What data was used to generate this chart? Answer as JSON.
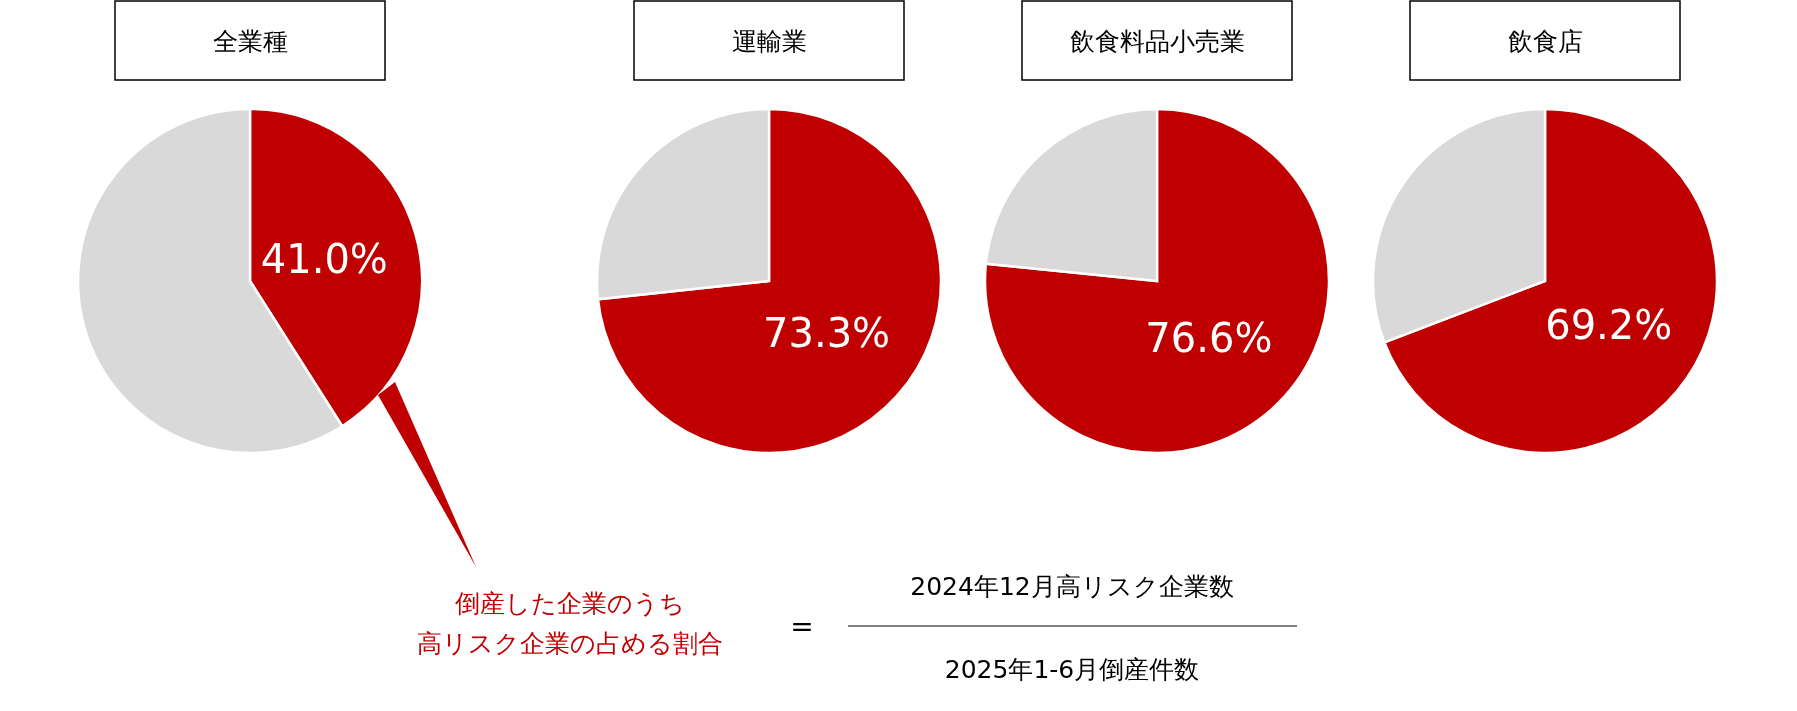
{
  "chart_data": [
    {
      "type": "pie",
      "title": "全業種",
      "categories": [
        null,
        null
      ],
      "values": [
        41.0,
        59.0
      ],
      "colors": [
        "#c00000",
        "#d9d9d9"
      ],
      "value_labels": [
        "41.0%",
        null
      ],
      "annotations": [
        "倒産した企業のうち",
        "高リスク企業の占める割合",
        "=",
        "2024年12月高リスク企業数",
        "2025年1-6月倒産件数"
      ]
    },
    {
      "type": "pie",
      "title": "運輸業",
      "categories": [
        null,
        null
      ],
      "values": [
        73.3,
        26.7
      ],
      "colors": [
        "#c00000",
        "#d9d9d9"
      ],
      "value_labels": [
        "73.3%",
        null
      ]
    },
    {
      "type": "pie",
      "title": "飲食料品小売業",
      "categories": [
        null,
        null
      ],
      "values": [
        76.6,
        23.4
      ],
      "colors": [
        "#c00000",
        "#d9d9d9"
      ],
      "value_labels": [
        "76.6%",
        null
      ]
    },
    {
      "type": "pie",
      "title": "飲食店",
      "categories": [
        null,
        null
      ],
      "values": [
        69.2,
        30.8
      ],
      "colors": [
        "#c00000",
        "#d9d9d9"
      ],
      "value_labels": [
        "69.2%",
        null
      ]
    }
  ]
}
